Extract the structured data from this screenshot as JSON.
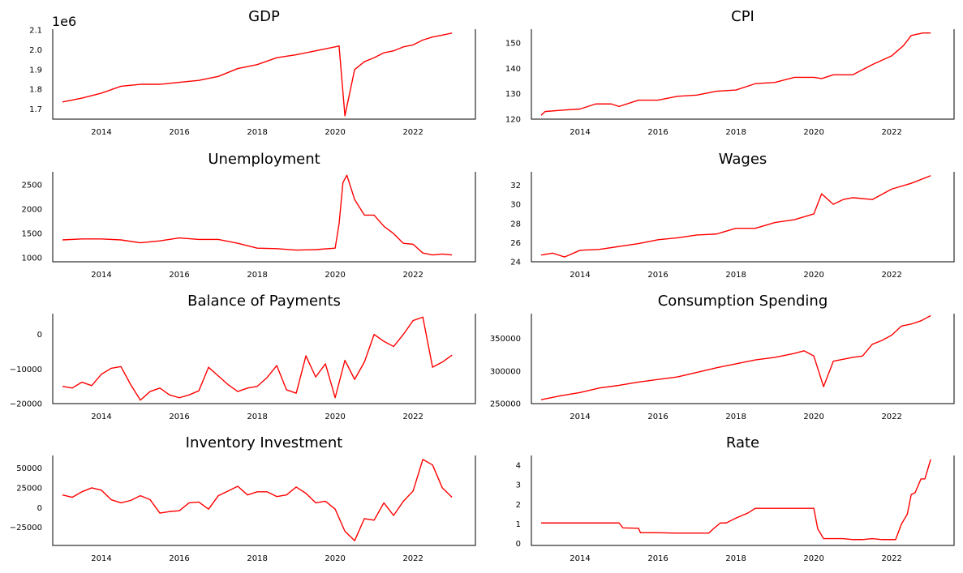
{
  "chart_data": [
    {
      "type": "line",
      "title": "GDP",
      "offset_label": "1e6",
      "xlim": [
        2012.75,
        2023.6
      ],
      "ylim": [
        1.648,
        2.105
      ],
      "xticks": [
        2014,
        2016,
        2018,
        2020,
        2022
      ],
      "xtick_labels": [
        "2014",
        "2016",
        "2018",
        "2020",
        "2022"
      ],
      "yticks": [
        1.7,
        1.8,
        1.9,
        2.0,
        2.1
      ],
      "ytick_labels": [
        "1.7",
        "1.8",
        "1.9",
        "2.0",
        "2.1"
      ],
      "color": "#ff0000",
      "x": [
        2013.0,
        2013.5,
        2014.0,
        2014.5,
        2015.0,
        2015.5,
        2016.0,
        2016.5,
        2017.0,
        2017.5,
        2018.0,
        2018.5,
        2019.0,
        2019.5,
        2020.0,
        2020.1,
        2020.25,
        2020.5,
        2020.75,
        2021.0,
        2021.25,
        2021.5,
        2021.75,
        2022.0,
        2022.25,
        2022.5,
        2022.75,
        2023.0
      ],
      "y": [
        1.735,
        1.755,
        1.78,
        1.815,
        1.825,
        1.825,
        1.835,
        1.845,
        1.865,
        1.905,
        1.925,
        1.96,
        1.975,
        1.995,
        2.015,
        2.02,
        1.665,
        1.9,
        1.94,
        1.96,
        1.985,
        1.995,
        2.015,
        2.025,
        2.05,
        2.065,
        2.075,
        2.085
      ]
    },
    {
      "type": "line",
      "title": "CPI",
      "xlim": [
        2012.75,
        2023.6
      ],
      "ylim": [
        120,
        155.5
      ],
      "xticks": [
        2014,
        2016,
        2018,
        2020,
        2022
      ],
      "xtick_labels": [
        "2014",
        "2016",
        "2018",
        "2020",
        "2022"
      ],
      "yticks": [
        120,
        130,
        140,
        150
      ],
      "ytick_labels": [
        "120",
        "130",
        "140",
        "150"
      ],
      "color": "#ff0000",
      "x": [
        2013.0,
        2013.1,
        2013.5,
        2014.0,
        2014.4,
        2014.8,
        2015.0,
        2015.5,
        2016.0,
        2016.5,
        2017.0,
        2017.5,
        2018.0,
        2018.5,
        2019.0,
        2019.5,
        2020.0,
        2020.2,
        2020.5,
        2021.0,
        2021.5,
        2022.0,
        2022.3,
        2022.5,
        2022.8,
        2023.0
      ],
      "y": [
        121.5,
        123,
        123.5,
        124,
        126,
        126,
        125,
        127.5,
        127.5,
        129,
        129.5,
        131,
        131.5,
        134,
        134.5,
        136.5,
        136.5,
        136,
        137.5,
        137.5,
        141.5,
        145,
        149,
        153,
        154,
        154
      ]
    },
    {
      "type": "line",
      "title": "Unemployment",
      "xlim": [
        2012.75,
        2023.6
      ],
      "ylim": [
        920,
        2770
      ],
      "xticks": [
        2014,
        2016,
        2018,
        2020,
        2022
      ],
      "xtick_labels": [
        "2014",
        "2016",
        "2018",
        "2020",
        "2022"
      ],
      "yticks": [
        1000,
        1500,
        2000,
        2500
      ],
      "ytick_labels": [
        "1000",
        "1500",
        "2000",
        "2500"
      ],
      "color": "#ff0000",
      "x": [
        2013.0,
        2013.5,
        2014.0,
        2014.5,
        2015.0,
        2015.5,
        2016.0,
        2016.5,
        2017.0,
        2017.5,
        2018.0,
        2018.5,
        2019.0,
        2019.5,
        2020.0,
        2020.1,
        2020.2,
        2020.3,
        2020.5,
        2020.75,
        2021.0,
        2021.25,
        2021.5,
        2021.75,
        2022.0,
        2022.25,
        2022.5,
        2022.75,
        2023.0
      ],
      "y": [
        1370,
        1390,
        1390,
        1370,
        1310,
        1350,
        1410,
        1380,
        1380,
        1300,
        1200,
        1190,
        1160,
        1170,
        1200,
        1700,
        2550,
        2700,
        2200,
        1880,
        1880,
        1650,
        1500,
        1300,
        1280,
        1100,
        1060,
        1080,
        1060
      ]
    },
    {
      "type": "line",
      "title": "Wages",
      "xlim": [
        2012.75,
        2023.6
      ],
      "ylim": [
        24,
        33.4
      ],
      "xticks": [
        2014,
        2016,
        2018,
        2020,
        2022
      ],
      "xtick_labels": [
        "2014",
        "2016",
        "2018",
        "2020",
        "2022"
      ],
      "yticks": [
        24,
        26,
        28,
        30,
        32
      ],
      "ytick_labels": [
        "24",
        "26",
        "28",
        "30",
        "32"
      ],
      "color": "#ff0000",
      "x": [
        2013.0,
        2013.3,
        2013.6,
        2014.0,
        2014.5,
        2015.0,
        2015.5,
        2016.0,
        2016.5,
        2017.0,
        2017.5,
        2018.0,
        2018.5,
        2019.0,
        2019.5,
        2020.0,
        2020.2,
        2020.5,
        2020.75,
        2021.0,
        2021.5,
        2022.0,
        2022.5,
        2023.0
      ],
      "y": [
        24.7,
        24.9,
        24.5,
        25.2,
        25.3,
        25.6,
        25.9,
        26.3,
        26.5,
        26.8,
        26.9,
        27.5,
        27.5,
        28.1,
        28.4,
        29.0,
        31.1,
        30.0,
        30.5,
        30.7,
        30.5,
        31.6,
        32.2,
        33.0
      ]
    },
    {
      "type": "line",
      "title": "Balance of Payments",
      "xlim": [
        2012.75,
        2023.6
      ],
      "ylim": [
        -20000,
        6000
      ],
      "xticks": [
        2014,
        2016,
        2018,
        2020,
        2022
      ],
      "xtick_labels": [
        "2014",
        "2016",
        "2018",
        "2020",
        "2022"
      ],
      "yticks": [
        -20000,
        -10000,
        0
      ],
      "ytick_labels": [
        "−20000",
        "−10000",
        "0"
      ],
      "color": "#ff0000",
      "x": [
        2013.0,
        2013.25,
        2013.5,
        2013.75,
        2014.0,
        2014.25,
        2014.5,
        2014.75,
        2015.0,
        2015.25,
        2015.5,
        2015.75,
        2016.0,
        2016.25,
        2016.5,
        2016.75,
        2017.0,
        2017.25,
        2017.5,
        2017.75,
        2018.0,
        2018.25,
        2018.5,
        2018.75,
        2019.0,
        2019.25,
        2019.5,
        2019.75,
        2020.0,
        2020.25,
        2020.5,
        2020.75,
        2021.0,
        2021.25,
        2021.5,
        2021.75,
        2022.0,
        2022.25,
        2022.5,
        2022.75,
        2023.0
      ],
      "y": [
        -15000,
        -15500,
        -13800,
        -14800,
        -11500,
        -9800,
        -9300,
        -14500,
        -19000,
        -16500,
        -15500,
        -17500,
        -18300,
        -17500,
        -16300,
        -9500,
        -12000,
        -14500,
        -16500,
        -15500,
        -15000,
        -12500,
        -9000,
        -16000,
        -17000,
        -6200,
        -12300,
        -8500,
        -18300,
        -7500,
        -13000,
        -8000,
        0,
        -2000,
        -3500,
        0,
        4000,
        5000,
        -9500,
        -8000,
        -6000
      ]
    },
    {
      "type": "line",
      "title": "Consumption Spending",
      "xlim": [
        2012.75,
        2023.6
      ],
      "ylim": [
        250000,
        388000
      ],
      "xticks": [
        2014,
        2016,
        2018,
        2020,
        2022
      ],
      "xtick_labels": [
        "2014",
        "2016",
        "2018",
        "2020",
        "2022"
      ],
      "yticks": [
        250000,
        300000,
        350000
      ],
      "ytick_labels": [
        "250000",
        "300000",
        "350000"
      ],
      "color": "#ff0000",
      "x": [
        2013.0,
        2013.5,
        2014.0,
        2014.5,
        2015.0,
        2015.5,
        2016.0,
        2016.5,
        2017.0,
        2017.5,
        2018.0,
        2018.5,
        2019.0,
        2019.5,
        2019.75,
        2020.0,
        2020.25,
        2020.5,
        2020.75,
        2021.0,
        2021.25,
        2021.5,
        2021.75,
        2022.0,
        2022.25,
        2022.5,
        2022.75,
        2023.0
      ],
      "y": [
        256000,
        262000,
        267000,
        274000,
        278000,
        283000,
        287000,
        291000,
        298000,
        305000,
        311000,
        317000,
        321000,
        327000,
        331000,
        323000,
        276000,
        315000,
        318000,
        321000,
        323000,
        341000,
        347000,
        355000,
        369000,
        372000,
        377000,
        385000
      ]
    },
    {
      "type": "line",
      "title": "Inventory Investment",
      "xlim": [
        2012.75,
        2023.6
      ],
      "ylim": [
        -48000,
        66000
      ],
      "xticks": [
        2014,
        2016,
        2018,
        2020,
        2022
      ],
      "xtick_labels": [
        "2014",
        "2016",
        "2018",
        "2020",
        "2022"
      ],
      "yticks": [
        -25000,
        0,
        25000,
        50000
      ],
      "ytick_labels": [
        "−25000",
        "0",
        "25000",
        "50000"
      ],
      "color": "#ff0000",
      "x": [
        2013.0,
        2013.25,
        2013.5,
        2013.75,
        2014.0,
        2014.25,
        2014.5,
        2014.75,
        2015.0,
        2015.25,
        2015.5,
        2015.75,
        2016.0,
        2016.25,
        2016.5,
        2016.75,
        2017.0,
        2017.25,
        2017.5,
        2017.75,
        2018.0,
        2018.25,
        2018.5,
        2018.75,
        2019.0,
        2019.25,
        2019.5,
        2019.75,
        2020.0,
        2020.25,
        2020.5,
        2020.75,
        2021.0,
        2021.25,
        2021.5,
        2021.75,
        2022.0,
        2022.25,
        2022.5,
        2022.75,
        2023.0
      ],
      "y": [
        16000,
        13000,
        20000,
        25000,
        22000,
        10000,
        6000,
        9000,
        15000,
        10000,
        -7000,
        -5000,
        -4000,
        6000,
        7000,
        -2000,
        15000,
        21000,
        27000,
        16000,
        20000,
        20000,
        14000,
        16000,
        26000,
        18000,
        6000,
        8000,
        -2000,
        -30000,
        -42000,
        -14000,
        -16000,
        6000,
        -10000,
        8000,
        21000,
        61000,
        54000,
        25000,
        13000
      ]
    },
    {
      "type": "line",
      "title": "Rate",
      "xlim": [
        2012.75,
        2023.6
      ],
      "ylim": [
        -0.1,
        4.5
      ],
      "xticks": [
        2014,
        2016,
        2018,
        2020,
        2022
      ],
      "xtick_labels": [
        "2014",
        "2016",
        "2018",
        "2020",
        "2022"
      ],
      "yticks": [
        0,
        1,
        2,
        3,
        4
      ],
      "ytick_labels": [
        "0",
        "1",
        "2",
        "3",
        "4"
      ],
      "color": "#ff0000",
      "x": [
        2013.0,
        2014.0,
        2015.0,
        2015.1,
        2015.5,
        2015.55,
        2016.0,
        2016.5,
        2017.0,
        2017.3,
        2017.45,
        2017.6,
        2017.75,
        2018.0,
        2018.3,
        2018.5,
        2018.75,
        2019.0,
        2019.5,
        2020.0,
        2020.1,
        2020.25,
        2020.5,
        2020.75,
        2021.0,
        2021.25,
        2021.5,
        2021.75,
        2022.0,
        2022.1,
        2022.25,
        2022.4,
        2022.5,
        2022.6,
        2022.75,
        2022.85,
        2023.0
      ],
      "y": [
        1.05,
        1.05,
        1.05,
        0.8,
        0.78,
        0.55,
        0.55,
        0.53,
        0.53,
        0.53,
        0.8,
        1.05,
        1.05,
        1.3,
        1.55,
        1.8,
        1.8,
        1.8,
        1.8,
        1.8,
        0.75,
        0.25,
        0.25,
        0.25,
        0.2,
        0.2,
        0.25,
        0.2,
        0.2,
        0.2,
        1.0,
        1.5,
        2.5,
        2.6,
        3.3,
        3.3,
        4.3
      ]
    }
  ]
}
